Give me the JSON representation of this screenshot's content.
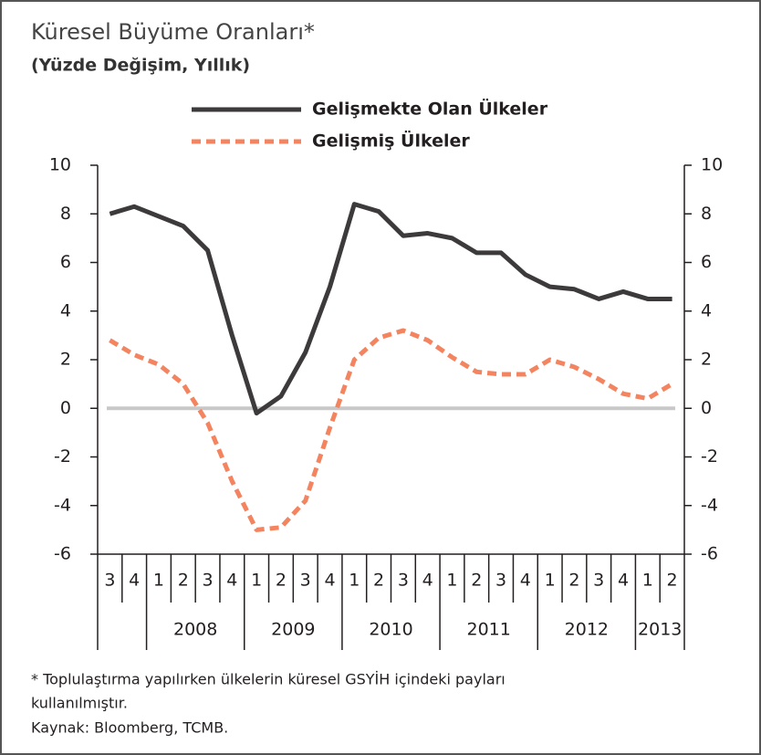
{
  "chart_data": {
    "type": "line",
    "title": "Küresel Büyüme Oranları*",
    "subtitle": "(Yüzde Değişim, Yıllık)",
    "categories": [
      "3",
      "4",
      "1",
      "2",
      "3",
      "4",
      "1",
      "2",
      "3",
      "4",
      "1",
      "2",
      "3",
      "4",
      "1",
      "2",
      "3",
      "4",
      "1",
      "2",
      "3",
      "4",
      "1",
      "2"
    ],
    "years": [
      "2008",
      "2009",
      "2010",
      "2011",
      "2012",
      "2013"
    ],
    "series": [
      {
        "name": "Gelişmekte Olan Ülkeler",
        "color": "#3d3a3b",
        "dash": false,
        "values": [
          8.0,
          8.3,
          7.9,
          7.5,
          6.5,
          3.0,
          -0.2,
          0.5,
          2.3,
          5.0,
          8.4,
          8.1,
          7.1,
          7.2,
          7.0,
          6.4,
          6.4,
          5.5,
          5.0,
          4.9,
          4.5,
          4.8,
          4.5,
          4.5
        ]
      },
      {
        "name": "Gelişmiş Ülkeler",
        "color": "#f4845f",
        "dash": true,
        "values": [
          2.8,
          2.2,
          1.8,
          1.0,
          -0.6,
          -3.0,
          -5.0,
          -4.9,
          -3.8,
          -0.8,
          2.0,
          2.9,
          3.2,
          2.8,
          2.1,
          1.5,
          1.4,
          1.4,
          2.0,
          1.7,
          1.2,
          0.6,
          0.4,
          1.0
        ]
      }
    ],
    "ylim": [
      -6,
      10
    ],
    "yticks": [
      -6,
      -4,
      -2,
      0,
      2,
      4,
      6,
      8,
      10
    ],
    "y2lim": [
      -6,
      10
    ],
    "y2ticks": [
      -6,
      -4,
      -2,
      0,
      2,
      4,
      6,
      8,
      10
    ],
    "zero_line_color": "#c8c8c8",
    "footnote": [
      "* Toplulaştırma yapılırken ülkelerin küresel GSYİH içindeki payları",
      "kullanılmıştır."
    ],
    "source": "Kaynak: Bloomberg, TCMB."
  }
}
